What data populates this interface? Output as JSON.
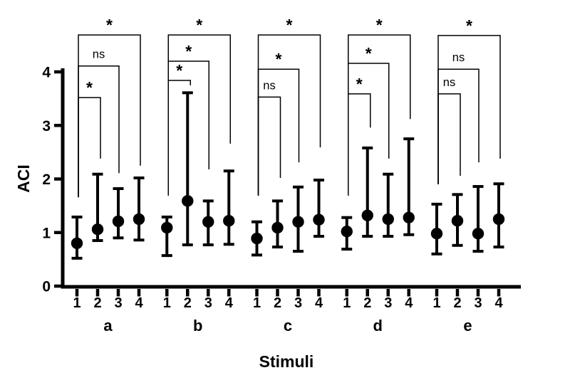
{
  "figure": {
    "background_color": "#ffffff",
    "ink_color": "#000000"
  },
  "chart_data": {
    "type": "scatter",
    "title": "",
    "xlabel": "Stimuli",
    "ylabel": "ACI",
    "ylim": [
      0,
      4.8
    ],
    "yticks": [
      0,
      1,
      2,
      3,
      4
    ],
    "grid": false,
    "legend": null,
    "marker": "filled-circle-with-error-bars",
    "point_labels": [
      "1",
      "2",
      "3",
      "4"
    ],
    "groups": [
      {
        "label": "a",
        "points": [
          {
            "x": "1",
            "mean": 0.8,
            "lo": 0.52,
            "hi": 1.29
          },
          {
            "x": "2",
            "mean": 1.06,
            "lo": 0.85,
            "hi": 2.09
          },
          {
            "x": "3",
            "mean": 1.21,
            "lo": 0.9,
            "hi": 1.82
          },
          {
            "x": "4",
            "mean": 1.25,
            "lo": 0.86,
            "hi": 2.02
          }
        ],
        "left_drop_to": 1.66,
        "comparisons": [
          {
            "from": 1,
            "to": 2,
            "label": "*",
            "bar_y": 3.52,
            "right_drop_to": 2.38
          },
          {
            "from": 1,
            "to": 3,
            "label": "ns",
            "bar_y": 4.11,
            "right_drop_to": 2.11
          },
          {
            "from": 1,
            "to": 4,
            "label": "*",
            "bar_y": 4.69,
            "right_drop_to": 2.25
          }
        ]
      },
      {
        "label": "b",
        "points": [
          {
            "x": "1",
            "mean": 1.09,
            "lo": 0.57,
            "hi": 1.29
          },
          {
            "x": "2",
            "mean": 1.59,
            "lo": 0.77,
            "hi": 3.61
          },
          {
            "x": "3",
            "mean": 1.2,
            "lo": 0.77,
            "hi": 1.59
          },
          {
            "x": "4",
            "mean": 1.22,
            "lo": 0.78,
            "hi": 2.15
          }
        ],
        "left_drop_to": 1.69,
        "comparisons": [
          {
            "from": 1,
            "to": 2,
            "label": "*",
            "bar_y": 3.84,
            "right_drop_to": 3.75
          },
          {
            "from": 1,
            "to": 3,
            "label": "*",
            "bar_y": 4.2,
            "right_drop_to": 2.18
          },
          {
            "from": 1,
            "to": 4,
            "label": "*",
            "bar_y": 4.69,
            "right_drop_to": 2.66
          }
        ]
      },
      {
        "label": "c",
        "points": [
          {
            "x": "1",
            "mean": 0.89,
            "lo": 0.58,
            "hi": 1.2
          },
          {
            "x": "2",
            "mean": 1.09,
            "lo": 0.73,
            "hi": 1.59
          },
          {
            "x": "3",
            "mean": 1.2,
            "lo": 0.65,
            "hi": 1.85
          },
          {
            "x": "4",
            "mean": 1.24,
            "lo": 0.93,
            "hi": 1.98
          }
        ],
        "left_drop_to": 1.69,
        "comparisons": [
          {
            "from": 1,
            "to": 2,
            "label": "ns",
            "bar_y": 3.53,
            "right_drop_to": 2.02
          },
          {
            "from": 1,
            "to": 3,
            "label": "*",
            "bar_y": 4.05,
            "right_drop_to": 2.31
          },
          {
            "from": 1,
            "to": 4,
            "label": "*",
            "bar_y": 4.69,
            "right_drop_to": 2.59
          }
        ]
      },
      {
        "label": "d",
        "points": [
          {
            "x": "1",
            "mean": 1.02,
            "lo": 0.69,
            "hi": 1.28
          },
          {
            "x": "2",
            "mean": 1.32,
            "lo": 0.93,
            "hi": 2.58
          },
          {
            "x": "3",
            "mean": 1.25,
            "lo": 0.93,
            "hi": 2.09
          },
          {
            "x": "4",
            "mean": 1.28,
            "lo": 0.96,
            "hi": 2.75
          }
        ],
        "left_drop_to": 1.69,
        "comparisons": [
          {
            "from": 1,
            "to": 2,
            "label": "*",
            "bar_y": 3.59,
            "right_drop_to": 2.96
          },
          {
            "from": 1,
            "to": 3,
            "label": "*",
            "bar_y": 4.16,
            "right_drop_to": 2.38
          },
          {
            "from": 1,
            "to": 4,
            "label": "*",
            "bar_y": 4.69,
            "right_drop_to": 3.12
          }
        ]
      },
      {
        "label": "e",
        "points": [
          {
            "x": "1",
            "mean": 0.98,
            "lo": 0.6,
            "hi": 1.53
          },
          {
            "x": "2",
            "mean": 1.22,
            "lo": 0.76,
            "hi": 1.71
          },
          {
            "x": "3",
            "mean": 0.98,
            "lo": 0.65,
            "hi": 1.86
          },
          {
            "x": "4",
            "mean": 1.25,
            "lo": 0.73,
            "hi": 1.91
          }
        ],
        "left_drop_to": 1.9,
        "comparisons": [
          {
            "from": 1,
            "to": 2,
            "label": "ns",
            "bar_y": 3.59,
            "right_drop_to": 2.06
          },
          {
            "from": 1,
            "to": 3,
            "label": "ns",
            "bar_y": 4.05,
            "right_drop_to": 2.31
          },
          {
            "from": 1,
            "to": 4,
            "label": "*",
            "bar_y": 4.68,
            "right_drop_to": 2.38
          }
        ]
      }
    ]
  }
}
